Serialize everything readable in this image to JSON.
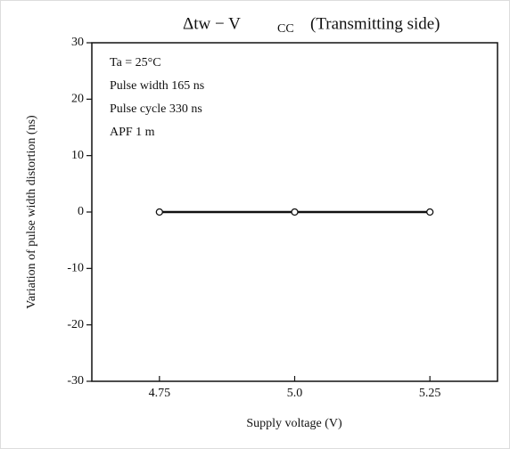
{
  "chart_data": {
    "type": "line",
    "title": "Δtw − V",
    "title_subscript": "CC",
    "title_suffix": "(Transmitting side)",
    "annotations": [
      "Ta = 25°C",
      "Pulse width 165 ns",
      "Pulse cycle 330 ns",
      "APF 1 m"
    ],
    "x_label": "Supply voltage (V)",
    "y_label": "Variation of pulse width distortion (ns)",
    "x": [
      4.75,
      5.0,
      5.25
    ],
    "series": [
      {
        "name": "Δtw",
        "color": "#111111",
        "values": [
          0,
          0,
          0
        ]
      }
    ],
    "xlim": [
      4.625,
      5.375
    ],
    "xticks": [
      4.75,
      {
        "value": 5,
        "label": "5.0"
      },
      5.25
    ],
    "ylim": [
      -30,
      30
    ],
    "yticks": [
      -30,
      -20,
      -10,
      0,
      10,
      20,
      30
    ]
  }
}
